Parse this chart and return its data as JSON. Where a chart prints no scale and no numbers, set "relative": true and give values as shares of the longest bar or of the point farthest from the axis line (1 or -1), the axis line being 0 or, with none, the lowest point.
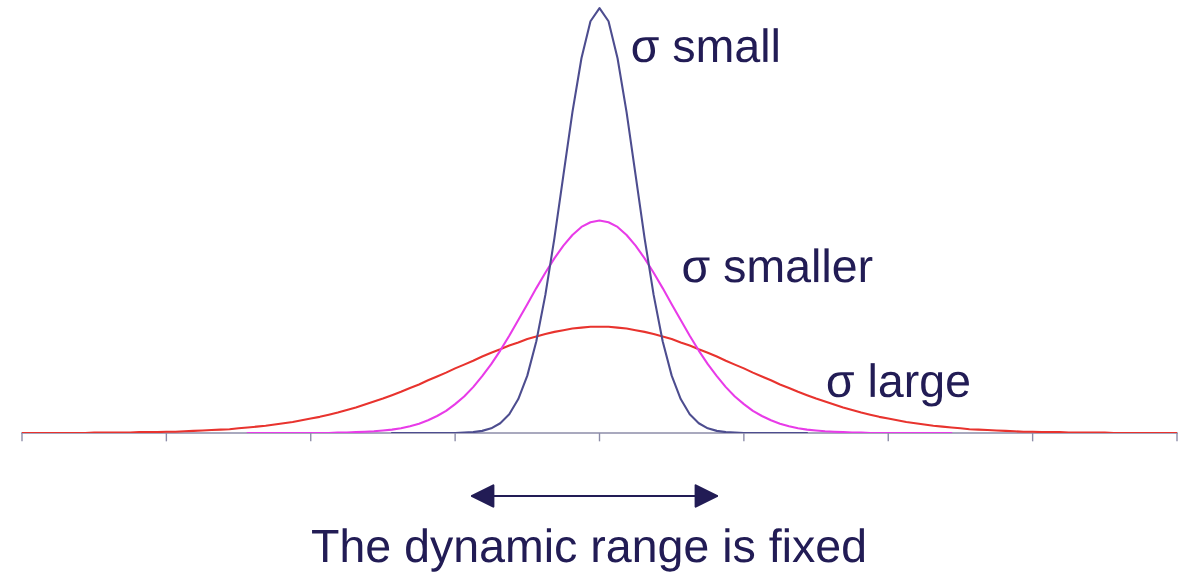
{
  "chart_data": {
    "type": "line",
    "relative": true,
    "line_style": "solid",
    "categories": [
      null,
      null,
      null,
      null,
      null,
      null,
      null,
      null,
      null,
      null,
      null,
      null,
      null,
      null,
      null,
      null,
      null,
      null,
      null,
      null,
      null,
      null,
      null,
      null,
      null,
      null,
      null,
      null,
      null,
      null,
      null,
      null,
      null,
      null,
      null,
      null,
      null,
      null,
      null,
      null,
      null,
      null,
      null,
      null,
      null,
      null,
      null,
      null,
      null,
      null,
      null,
      null,
      null,
      null,
      null,
      null,
      null,
      null,
      null,
      null,
      null,
      null,
      null,
      null,
      null,
      null,
      null,
      null,
      null,
      null,
      null,
      null,
      null,
      null,
      null,
      null,
      null,
      null,
      null,
      null,
      null,
      null,
      null,
      null,
      null,
      null,
      null,
      null,
      null,
      null,
      null,
      null,
      null,
      null,
      null,
      null,
      null,
      null,
      null,
      null,
      null,
      null,
      null,
      null,
      null,
      null,
      null,
      null,
      null,
      null,
      null,
      null,
      null,
      null,
      null,
      null,
      null,
      null,
      null,
      null,
      null,
      null,
      null,
      null,
      null,
      null,
      null,
      null,
      null
    ],
    "series": [
      {
        "name": "σ small",
        "color": "#4d4d8f",
        "values": [
          null,
          null,
          null,
          null,
          null,
          null,
          null,
          null,
          null,
          null,
          null,
          null,
          null,
          null,
          null,
          null,
          null,
          null,
          null,
          null,
          null,
          null,
          null,
          null,
          null,
          null,
          null,
          null,
          null,
          null,
          null,
          null,
          null,
          null,
          null,
          null,
          null,
          null,
          null,
          null,
          null,
          0,
          0,
          0,
          0,
          0,
          0,
          0,
          0,
          0.001,
          0.002,
          0.005,
          0.011,
          0.023,
          0.044,
          0.08,
          0.135,
          0.216,
          0.325,
          0.458,
          0.607,
          0.755,
          0.882,
          0.969,
          1,
          0.969,
          0.882,
          0.755,
          0.607,
          0.458,
          0.325,
          0.216,
          0.135,
          0.08,
          0.044,
          0.023,
          0.011,
          0.005,
          0.002,
          0.001,
          0,
          0,
          0,
          0,
          0,
          0,
          0,
          0,
          null,
          null,
          null,
          null,
          null,
          null,
          null,
          null,
          null,
          null,
          null,
          null,
          null,
          null,
          null,
          null,
          null,
          null,
          null,
          null,
          null,
          null,
          null,
          null,
          null,
          null,
          null,
          null,
          null,
          null,
          null,
          null,
          null,
          null,
          null,
          null,
          null,
          null,
          null,
          null,
          null
        ]
      },
      {
        "name": "σ smaller",
        "color": "#e83be8",
        "values": [
          null,
          null,
          null,
          null,
          null,
          null,
          null,
          null,
          null,
          null,
          null,
          null,
          null,
          null,
          null,
          null,
          null,
          null,
          null,
          null,
          null,
          null,
          null,
          null,
          null,
          0,
          0,
          0,
          0,
          0,
          0,
          0,
          0,
          0,
          0,
          0.001,
          0.001,
          0.002,
          0.003,
          0.004,
          0.006,
          0.008,
          0.011,
          0.016,
          0.022,
          0.03,
          0.04,
          0.052,
          0.068,
          0.086,
          0.108,
          0.134,
          0.162,
          0.194,
          0.229,
          0.266,
          0.303,
          0.341,
          0.377,
          0.411,
          0.441,
          0.466,
          0.485,
          0.496,
          0.5,
          0.496,
          0.485,
          0.466,
          0.441,
          0.411,
          0.377,
          0.341,
          0.303,
          0.266,
          0.229,
          0.194,
          0.162,
          0.134,
          0.108,
          0.086,
          0.068,
          0.052,
          0.04,
          0.03,
          0.022,
          0.016,
          0.011,
          0.008,
          0.006,
          0.004,
          0.003,
          0.002,
          0.001,
          0.001,
          0,
          0,
          0,
          0,
          0,
          0,
          0,
          0,
          0,
          0,
          null,
          null,
          null,
          null,
          null,
          null,
          null,
          null,
          null,
          null,
          null,
          null,
          null,
          null,
          null,
          null,
          null,
          null,
          null,
          null,
          null,
          null,
          null,
          null,
          null
        ]
      },
      {
        "name": "σ large",
        "color": "#e8332e",
        "values": [
          0,
          0,
          0,
          0,
          0,
          0,
          0,
          0,
          0.001,
          0.001,
          0.001,
          0.001,
          0.001,
          0.002,
          0.002,
          0.002,
          0.003,
          0.003,
          0.004,
          0.005,
          0.006,
          0.007,
          0.008,
          0.009,
          0.011,
          0.013,
          0.015,
          0.017,
          0.02,
          0.023,
          0.026,
          0.03,
          0.034,
          0.038,
          0.043,
          0.048,
          0.054,
          0.06,
          0.067,
          0.074,
          0.081,
          0.089,
          0.097,
          0.106,
          0.114,
          0.124,
          0.133,
          0.142,
          0.152,
          0.161,
          0.17,
          0.18,
          0.189,
          0.197,
          0.206,
          0.213,
          0.221,
          0.227,
          0.233,
          0.238,
          0.242,
          0.246,
          0.248,
          0.25,
          0.25,
          0.25,
          0.248,
          0.246,
          0.242,
          0.238,
          0.233,
          0.227,
          0.221,
          0.213,
          0.206,
          0.197,
          0.189,
          0.18,
          0.17,
          0.161,
          0.152,
          0.142,
          0.133,
          0.124,
          0.114,
          0.106,
          0.097,
          0.089,
          0.081,
          0.074,
          0.067,
          0.06,
          0.054,
          0.048,
          0.043,
          0.038,
          0.034,
          0.03,
          0.026,
          0.023,
          0.02,
          0.017,
          0.015,
          0.013,
          0.011,
          0.009,
          0.008,
          0.007,
          0.006,
          0.005,
          0.004,
          0.003,
          0.003,
          0.002,
          0.002,
          0.002,
          0.001,
          0.001,
          0.001,
          0.001,
          0.001,
          0,
          0,
          0,
          0,
          0,
          0,
          0,
          0
        ]
      }
    ],
    "annotations": [
      "The dynamic range is fixed"
    ]
  }
}
